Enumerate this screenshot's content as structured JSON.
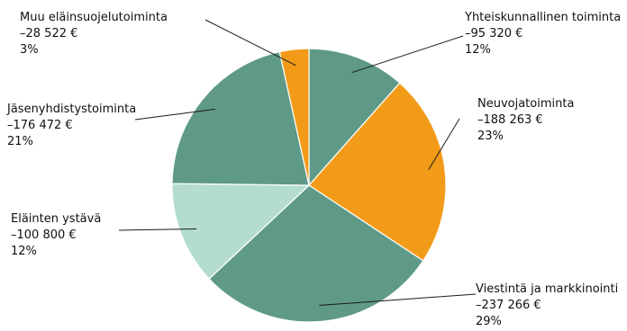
{
  "chart_data": {
    "type": "pie",
    "slices": [
      {
        "name": "Yhteiskunnallinen toiminta",
        "value_text": "–95 320 €",
        "value": -95320,
        "percent_text": "12%",
        "percent": 12,
        "color": "#5f9a88"
      },
      {
        "name": "Neuvojatoiminta",
        "value_text": "–188 263 €",
        "value": -188263,
        "percent_text": "23%",
        "percent": 23,
        "color": "#f29b19"
      },
      {
        "name": "Viestintä ja markkinointi",
        "value_text": "–237 266 €",
        "value": -237266,
        "percent_text": "29%",
        "percent": 29,
        "color": "#5f9a88"
      },
      {
        "name": "Eläinten ystävä",
        "value_text": "–100 800 €",
        "value": -100800,
        "percent_text": "12%",
        "percent": 12,
        "color": "#b4ddd0"
      },
      {
        "name": "Jäsenyhdistystoiminta",
        "value_text": "–176 472 €",
        "value": -176472,
        "percent_text": "21%",
        "percent": 21,
        "color": "#5f9a88"
      },
      {
        "name": "Muu eläinsuojelutoiminta",
        "value_text": "–28 522 €",
        "value": -28522,
        "percent_text": "3%",
        "percent": 3,
        "color": "#f29b19"
      }
    ]
  }
}
